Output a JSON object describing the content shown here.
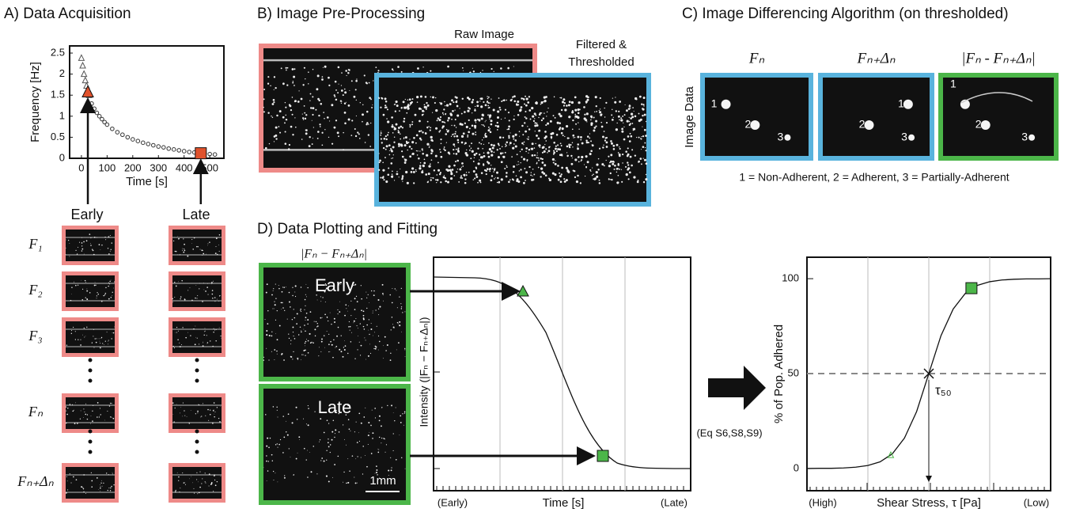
{
  "panel_a": {
    "title": "A) Data Acquisition",
    "early": "Early",
    "late": "Late",
    "frames": [
      "F₁",
      "F₂",
      "F₃",
      "Fₙ",
      "Fₙ₊Δₙ"
    ]
  },
  "panel_b": {
    "title": "B) Image Pre-Processing",
    "raw": "Raw Image",
    "filtered": [
      "Filtered &",
      "Thresholded"
    ]
  },
  "panel_c": {
    "title": "C) Image Differencing Algorithm (on thresholded)",
    "row_label": "Image Data",
    "cells": [
      {
        "label": "Fₙ",
        "spots": [
          "1",
          "2",
          "3"
        ]
      },
      {
        "label": "Fₙ₊Δₙ",
        "spots": [
          "1",
          "2",
          "3"
        ]
      },
      {
        "label": "|Fₙ - Fₙ₊Δₙ|",
        "spots": [
          "1",
          "2",
          "3"
        ]
      }
    ],
    "caption": "1 = Non-Adherent,  2 = Adherent,  3 = Partially-Adherent"
  },
  "panel_d": {
    "title": "D) Data Plotting and Fitting",
    "header": "|Fₙ − Fₙ₊Δₙ|",
    "early": "Early",
    "late": "Late",
    "scale": "1mm",
    "y_label": "Intensity (|Fₙ − Fₙ₊Δₙ|)",
    "x_start": "(Early)",
    "x_label": "Time [s]",
    "x_end": "(Late)",
    "equation": "(Eq S6,S8,S9)"
  },
  "chart_data": [
    {
      "type": "scatter",
      "x_label": "Time [s]",
      "y_label": "Frequency [Hz]",
      "xlim": [
        -46,
        555
      ],
      "ylim": [
        0,
        2.67
      ],
      "xticks": [
        0,
        100,
        200,
        300,
        400,
        500
      ],
      "yticks": [
        0,
        0.5,
        1,
        1.5,
        2,
        2.5
      ],
      "series": [
        {
          "marker": "triangle",
          "color": "#555555",
          "x": [
            0,
            5,
            10,
            15,
            20,
            30
          ],
          "values": [
            2.38,
            2.2,
            2.0,
            1.85,
            1.72,
            1.5
          ]
        },
        {
          "marker": "circle",
          "color": "#333333",
          "x": [
            40,
            50,
            60,
            70,
            80,
            90,
            100,
            120,
            140,
            160,
            180,
            200,
            220,
            240,
            260,
            280,
            300,
            320,
            340,
            360,
            380,
            400,
            420,
            440,
            460,
            480,
            500,
            520
          ],
          "values": [
            1.3,
            1.18,
            1.08,
            1.0,
            0.93,
            0.86,
            0.8,
            0.7,
            0.62,
            0.56,
            0.5,
            0.45,
            0.41,
            0.37,
            0.34,
            0.31,
            0.28,
            0.26,
            0.23,
            0.21,
            0.19,
            0.17,
            0.15,
            0.14,
            0.12,
            0.11,
            0.1,
            0.09
          ]
        },
        {
          "marker": "big-triangle",
          "color": "#e0522c",
          "x": [
            25
          ],
          "values": [
            1.57
          ]
        },
        {
          "marker": "square",
          "color": "#e0522c",
          "x": [
            465
          ],
          "values": [
            0.12
          ]
        }
      ]
    },
    {
      "type": "line",
      "x_label": "Shear Stress, τ [Pa]",
      "x_start_label": "(High)",
      "x_end_label": "(Low)",
      "y_label": "% of Pop. Adhered",
      "xlim": [
        0,
        10
      ],
      "ylim": [
        -11.7,
        111.3
      ],
      "yticks": [
        0,
        50,
        100
      ],
      "color": "#111111",
      "reference_line": 50,
      "x": [
        0,
        0.5,
        1,
        1.5,
        2,
        2.5,
        3,
        3.5,
        4,
        4.5,
        5,
        5.5,
        6,
        6.5,
        7,
        7.5,
        8,
        8.5,
        9,
        9.5,
        10
      ],
      "values": [
        0,
        0.1,
        0.1,
        0.3,
        0.7,
        1.6,
        3.5,
        7.7,
        16,
        30,
        50,
        70,
        84,
        92.3,
        96.5,
        98.4,
        99.3,
        99.7,
        99.9,
        99.9,
        100
      ],
      "markers": [
        {
          "marker": "triangle",
          "color": "#4cb649",
          "x": 3.44,
          "y": 7
        },
        {
          "marker": "square",
          "color": "#4cb649",
          "x": 6.75,
          "y": 95
        },
        {
          "marker": "cross",
          "color": "#111111",
          "x": 5,
          "y": 50,
          "label": "τ₅₀"
        }
      ]
    }
  ]
}
